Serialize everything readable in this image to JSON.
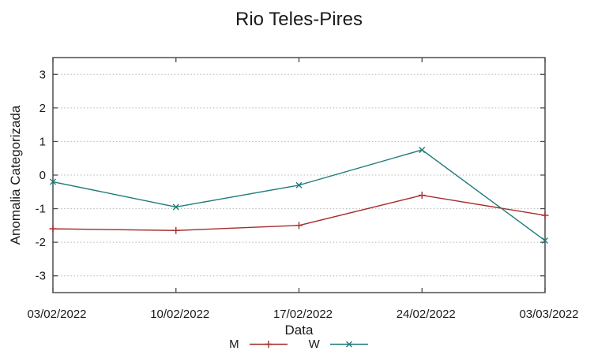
{
  "chart_data": {
    "type": "line",
    "title": "Rio Teles-Pires",
    "xlabel": "Data",
    "ylabel": "Anomalia Categorizada",
    "categories": [
      "03/02/2022",
      "10/02/2022",
      "17/02/2022",
      "24/02/2022",
      "03/03/2022"
    ],
    "series": [
      {
        "name": "M",
        "marker": "plus",
        "color": "#a62c2c",
        "values": [
          -1.6,
          -1.65,
          -1.5,
          -0.6,
          -1.2
        ]
      },
      {
        "name": "W",
        "marker": "cross",
        "color": "#1f7a7a",
        "values": [
          -0.2,
          -0.95,
          -0.3,
          0.75,
          -1.95
        ]
      }
    ],
    "yticks": [
      -3,
      -2,
      -1,
      0,
      1,
      2,
      3
    ],
    "ylim": [
      -3.5,
      3.5
    ],
    "grid": "horizontal-dotted",
    "legend_position": "bottom-center",
    "colors": {
      "axis": "#4d4d4d",
      "grid": "#b5b5b5",
      "text": "#1a1a1a"
    }
  }
}
